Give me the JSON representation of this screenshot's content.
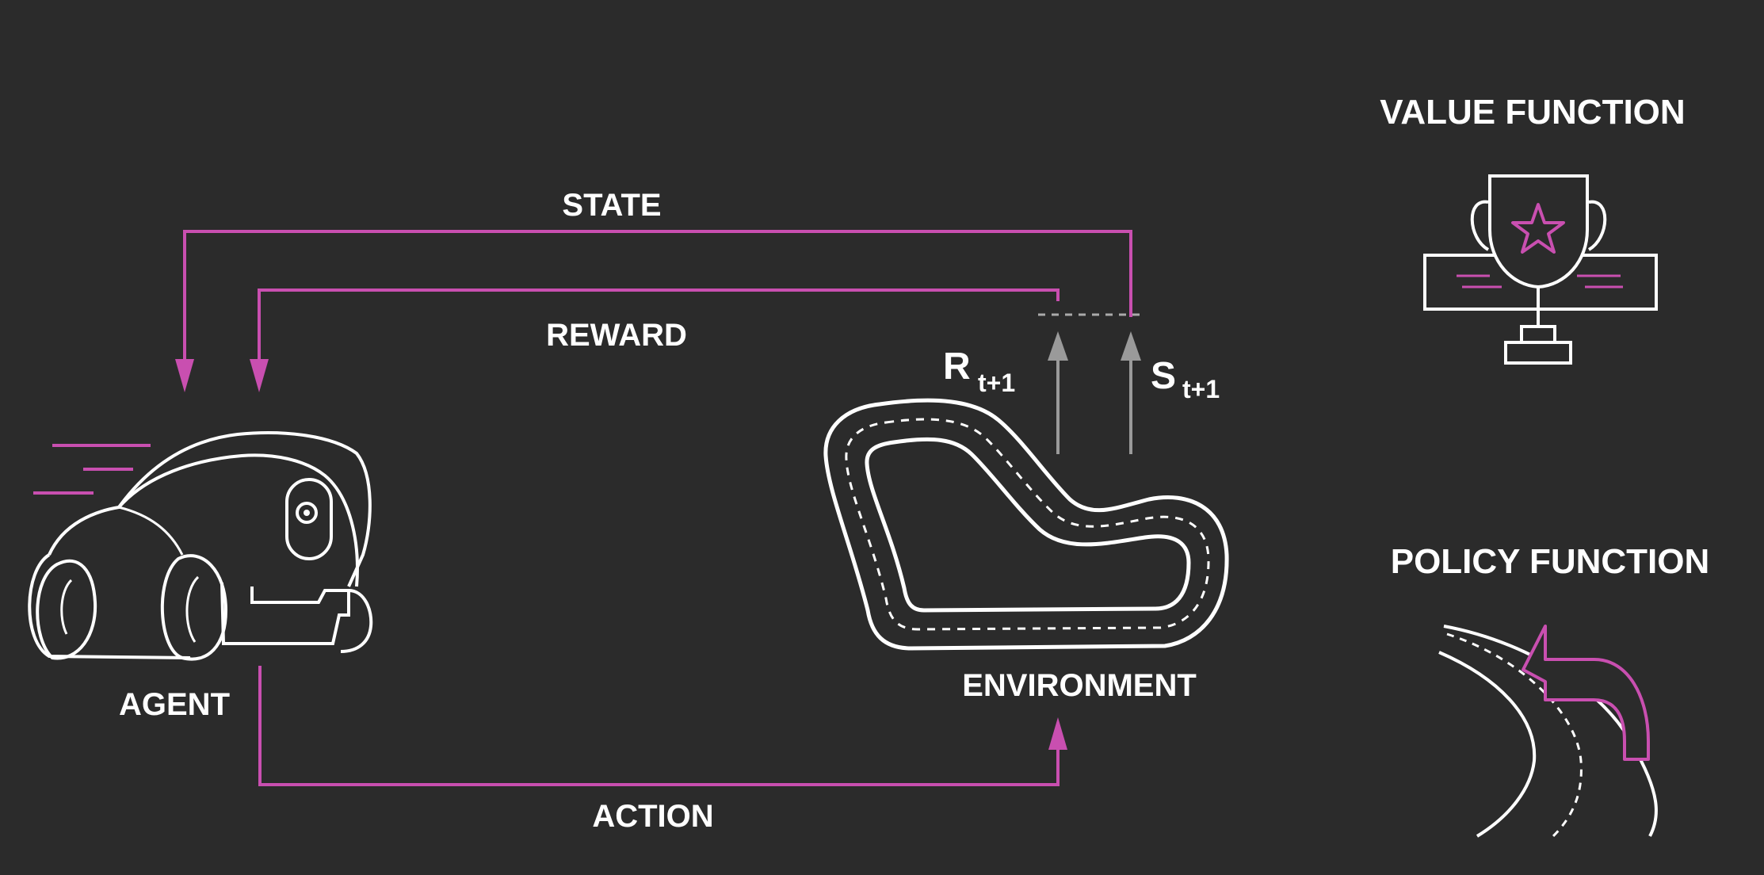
{
  "labels": {
    "state": "STATE",
    "reward": "REWARD",
    "action": "ACTION",
    "agent": "AGENT",
    "environment": "ENVIRONMENT",
    "reward_symbol": "R",
    "reward_subscript": "t+1",
    "state_symbol": "S",
    "state_subscript": "t+1"
  },
  "side_panel": {
    "value_function": "VALUE FUNCTION",
    "policy_function": "POLICY FUNCTION"
  },
  "icons": {
    "agent": "race-car-icon",
    "environment": "race-track-icon",
    "value_function": "trophy-icon",
    "policy_function": "winding-road-icon"
  },
  "colors": {
    "background": "#2b2b2b",
    "accent": "#c94fb0",
    "line": "#ffffff",
    "arrow_gray": "#9a9a9a",
    "underline_left": "#4a6fd6",
    "underline_right": "#c94fb0"
  }
}
